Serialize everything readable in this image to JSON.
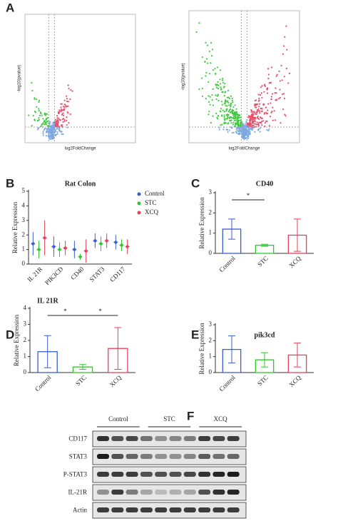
{
  "panel_a": {
    "label": "A",
    "plots": [
      {
        "x_label": "log2FoldChange",
        "y_label": "-log10(pvalue)"
      },
      {
        "x_label": "log2FoldChange",
        "y_label": "-log10(pvalue)"
      }
    ]
  },
  "charts": [
    {
      "label": "B",
      "type": "dot",
      "title": "Rat Colon",
      "y_label": "Relative Expression",
      "categories": [
        "IL 21R",
        "PIK3CD",
        "CD40",
        "STAT3",
        "CD117"
      ],
      "series": [
        {
          "name": "Control",
          "color": "#3a5fd0",
          "values": [
            1.4,
            1.2,
            1.0,
            1.6,
            1.5
          ],
          "errors": [
            0.8,
            0.7,
            0.6,
            0.5,
            0.5
          ]
        },
        {
          "name": "STC",
          "color": "#2ec82e",
          "values": [
            1.0,
            1.0,
            0.5,
            1.4,
            1.3
          ],
          "errors": [
            0.6,
            0.5,
            0.2,
            0.5,
            0.4
          ]
        },
        {
          "name": "XCQ",
          "color": "#e8405a",
          "values": [
            1.8,
            1.1,
            0.9,
            1.6,
            1.2
          ],
          "errors": [
            1.2,
            0.5,
            0.8,
            0.5,
            0.5
          ]
        }
      ],
      "ylim": [
        0,
        5
      ],
      "yticks": [
        0,
        1,
        2,
        3,
        4,
        5
      ]
    },
    {
      "label": "C",
      "type": "bar",
      "title": "CD40",
      "y_label": "Relative Expression",
      "categories": [
        "Control",
        "STC",
        "XCQ"
      ],
      "colors": [
        "#3a5fd0",
        "#2ec82e",
        "#e8405a"
      ],
      "values": [
        1.2,
        0.4,
        0.9
      ],
      "errors": [
        0.5,
        0.05,
        0.8
      ],
      "ylim": [
        0,
        3
      ],
      "yticks": [
        0,
        1,
        2,
        3
      ],
      "significance": [
        {
          "from": 0,
          "to": 1,
          "label": "*"
        }
      ]
    },
    {
      "label": "D",
      "type": "bar",
      "title": "IL 21R",
      "y_label": "Relative Expression",
      "categories": [
        "Control",
        "STC",
        "XCQ"
      ],
      "colors": [
        "#3a5fd0",
        "#2ec82e",
        "#e8405a"
      ],
      "values": [
        1.3,
        0.35,
        1.5
      ],
      "errors": [
        1.0,
        0.15,
        1.3
      ],
      "ylim": [
        0,
        4
      ],
      "yticks": [
        0,
        1,
        2,
        3,
        4
      ],
      "significance": [
        {
          "from": 0,
          "to": 1,
          "label": "*"
        },
        {
          "from": 1,
          "to": 2,
          "label": "*"
        }
      ]
    },
    {
      "label": "E",
      "type": "bar",
      "title": "pik3cd",
      "y_label": "Relative Expression",
      "categories": [
        "Control",
        "STC",
        "XCQ"
      ],
      "colors": [
        "#3a5fd0",
        "#2ec82e",
        "#e8405a"
      ],
      "values": [
        1.45,
        0.8,
        1.1
      ],
      "errors": [
        0.85,
        0.45,
        0.75
      ],
      "ylim": [
        0,
        3
      ],
      "yticks": [
        0,
        1,
        2,
        3
      ]
    }
  ],
  "panel_f": {
    "label": "F",
    "groups": [
      "Control",
      "STC",
      "XCQ"
    ],
    "rows": [
      "CD117",
      "STAT3",
      "P-STAT3",
      "IL-21R",
      "Actin"
    ]
  }
}
